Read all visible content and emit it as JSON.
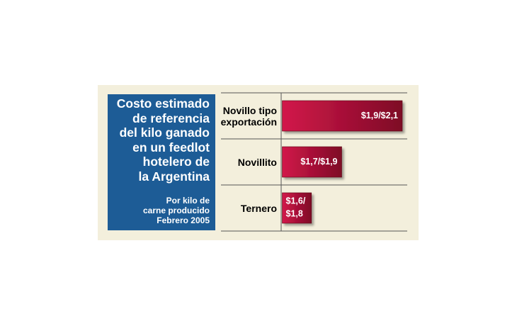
{
  "chart_data": {
    "type": "bar",
    "orientation": "horizontal",
    "title": "Costo estimado\nde referencia\ndel kilo ganado\nen un feedlot\nhotelero de\nla Argentina",
    "subtitle": "Por kilo de\ncarne producido\nFebrero 2005",
    "categories": [
      "Novillo tipo exportación",
      "Novillito",
      "Ternero"
    ],
    "values": [
      2.1,
      1.9,
      1.8
    ],
    "value_labels": [
      "$1,9/$2,1",
      "$1,7/$1,9",
      "$1,6/$1,8"
    ],
    "color": "#b8103a",
    "xlim": [
      1.7,
      2.1
    ]
  }
}
